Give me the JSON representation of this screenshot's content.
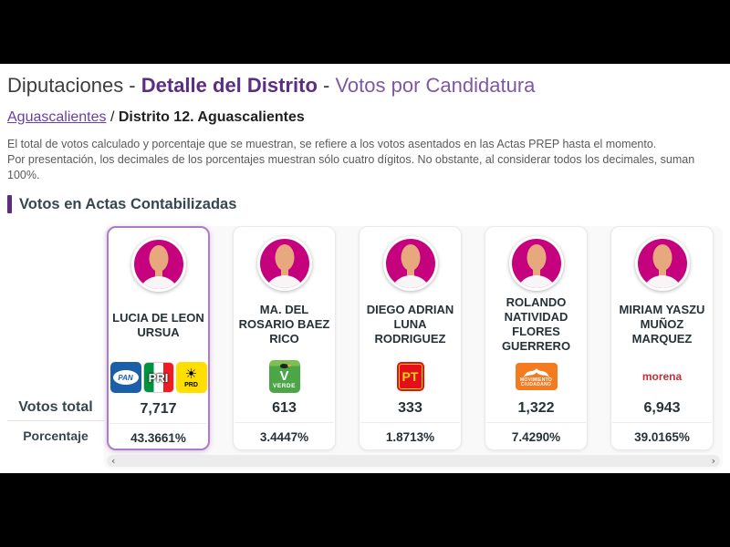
{
  "header": {
    "title_part1": "Diputaciones - ",
    "title_part2": "Detalle del Distrito",
    "title_part3": " - ",
    "title_part4": "Votos por Candidatura",
    "breadcrumb_link": "Aguascalientes",
    "breadcrumb_separator": " / ",
    "breadcrumb_current": "Distrito 12.  Aguascalientes"
  },
  "notes": {
    "top_line1": "El total de votos calculado y porcentaje que se muestran, se refiere a los votos asentados en las Actas PREP hasta el momento.",
    "top_line2": "Por presentación, los decimales de los porcentajes muestran sólo cuatro dígitos. No obstante, al considerar todos los decimales, suman 100%.",
    "bottom": "Por presentación, los decimales de los porcentajes muestran sólo cuatro dígitos. No obstante, al considerar todos los decimales, suman 100%."
  },
  "section": {
    "title": "Votos en Actas Contabilizadas"
  },
  "row_labels": {
    "votes": "Votos total",
    "percentage": "Porcentaje"
  },
  "candidates": [
    {
      "name": "LUCIA DE LEON URSUA",
      "parties": [
        "pan",
        "pri",
        "prd"
      ],
      "votes": "7,717",
      "percentage": "43.3661%",
      "highlighted": true
    },
    {
      "name": "MA. DEL ROSARIO BAEZ RICO",
      "parties": [
        "verde"
      ],
      "votes": "613",
      "percentage": "3.4447%",
      "highlighted": false
    },
    {
      "name": "DIEGO ADRIAN LUNA RODRIGUEZ",
      "parties": [
        "pt"
      ],
      "votes": "333",
      "percentage": "1.8713%",
      "highlighted": false
    },
    {
      "name": "ROLANDO NATIVIDAD FLORES GUERRERO",
      "parties": [
        "mc"
      ],
      "votes": "1,322",
      "percentage": "7.4290%",
      "highlighted": false
    },
    {
      "name": "MIRIAM YASZU MUÑOZ MARQUEZ",
      "parties": [
        "morena"
      ],
      "votes": "6,943",
      "percentage": "39.0165%",
      "highlighted": false
    }
  ],
  "party_logos": {
    "pan": {
      "label": "PAN"
    },
    "pri": {
      "label": "PRI"
    },
    "prd": {
      "label": "PRD",
      "symbol": "☀"
    },
    "verde": {
      "v": "V",
      "label": "VERDE"
    },
    "pt": {
      "label": "PT"
    },
    "mc": {
      "line1": "MOVIMIENTO",
      "line2": "CIUDADANO"
    },
    "morena": {
      "label": "morena"
    }
  },
  "scrollbar": {
    "left_arrow": "‹",
    "right_arrow": "›"
  },
  "colors": {
    "accent_purple": "#5b2e83",
    "title_secondary_purple": "#7e57a5",
    "link_purple": "#6a3fa0",
    "highlight_border": "#ab7dc2",
    "avatar_pink": "#c6017e",
    "pan_blue": "#1b5faa",
    "pri_green": "#00923f",
    "pri_red": "#ee1c25",
    "prd_yellow": "#ffde00",
    "verde_green": "#4ca647",
    "pt_red": "#e3101b",
    "mc_orange": "#f47b20",
    "morena_red": "#c42f39"
  }
}
